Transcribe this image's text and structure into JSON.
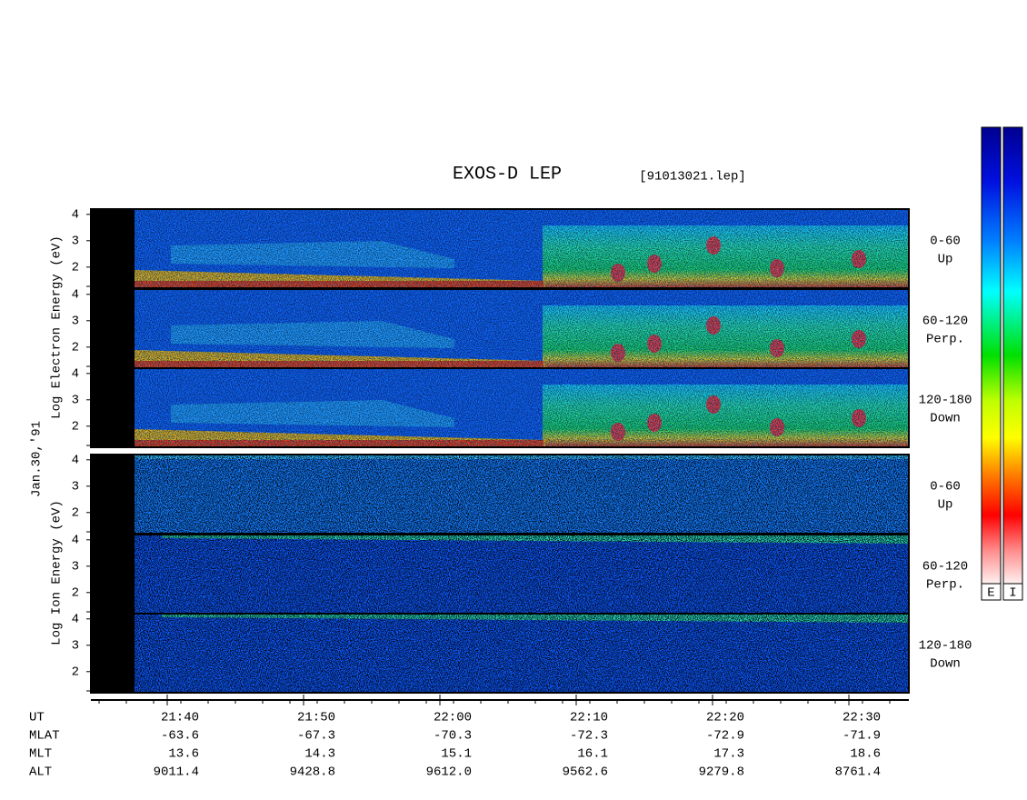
{
  "title": "EXOS-D LEP",
  "file": "[91013021.lep]",
  "date_label": "Jan.30,'91",
  "electron_label": "Log Electron Energy (eV)",
  "ion_label": "Log Ion Energy (eV)",
  "yticks": [
    2,
    3,
    4
  ],
  "panels": [
    {
      "angle": "0-60",
      "dir": "Up"
    },
    {
      "angle": "60-120",
      "dir": "Perp."
    },
    {
      "angle": "120-180",
      "dir": "Down"
    }
  ],
  "colorbars": [
    "E",
    "I"
  ],
  "ut": [
    "21:40",
    "21:50",
    "22:00",
    "22:10",
    "22:20",
    "22:30"
  ],
  "rows": [
    {
      "label": "UT"
    },
    {
      "label": "MLAT",
      "values": [
        "-63.6",
        "-67.3",
        "-70.3",
        "-72.3",
        "-72.9",
        "-71.9"
      ]
    },
    {
      "label": "MLT",
      "values": [
        "13.6",
        "14.3",
        "15.1",
        "16.1",
        "17.3",
        "18.6"
      ]
    },
    {
      "label": "ALT",
      "values": [
        "9011.4",
        "9428.8",
        "9612.0",
        "9562.6",
        "9279.8",
        "8761.4"
      ]
    }
  ]
}
